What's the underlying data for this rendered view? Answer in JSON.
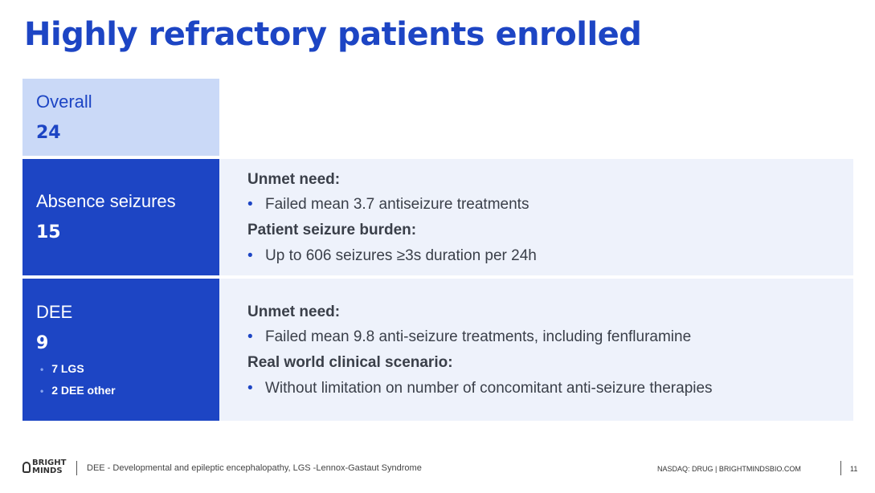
{
  "title": "Highly refractory patients enrolled",
  "overall": {
    "label": "Overall",
    "count": "24"
  },
  "absence": {
    "label": "Absence seizures",
    "count": "15",
    "unmet_heading": "Unmet need:",
    "unmet_bullet": "Failed mean 3.7 antiseizure treatments",
    "burden_heading": "Patient seizure burden:",
    "burden_bullet": "Up to 606 seizures ≥3s duration per 24h"
  },
  "dee": {
    "label": "DEE",
    "count": "9",
    "sub_items": [
      "7 LGS",
      "2 DEE other"
    ],
    "unmet_heading": "Unmet need:",
    "unmet_bullet": "Failed mean 9.8 anti-seizure treatments, including fenfluramine",
    "scenario_heading": "Real world clinical scenario:",
    "scenario_bullet": "Without limitation on number of concomitant anti-seizure therapies"
  },
  "footer": {
    "logo_line1": "BRIGHT",
    "logo_line2": "MINDS",
    "note": "DEE - Developmental and epileptic encephalopathy, LGS -Lennox-Gastaut Syndrome",
    "right": "NASDAQ: DRUG | BRIGHTMINDSBIO.COM",
    "page": "11"
  },
  "colors": {
    "primary": "#1d45c4",
    "light": "#cad9f7",
    "panel": "#eef2fb",
    "text": "#3a3f49"
  }
}
